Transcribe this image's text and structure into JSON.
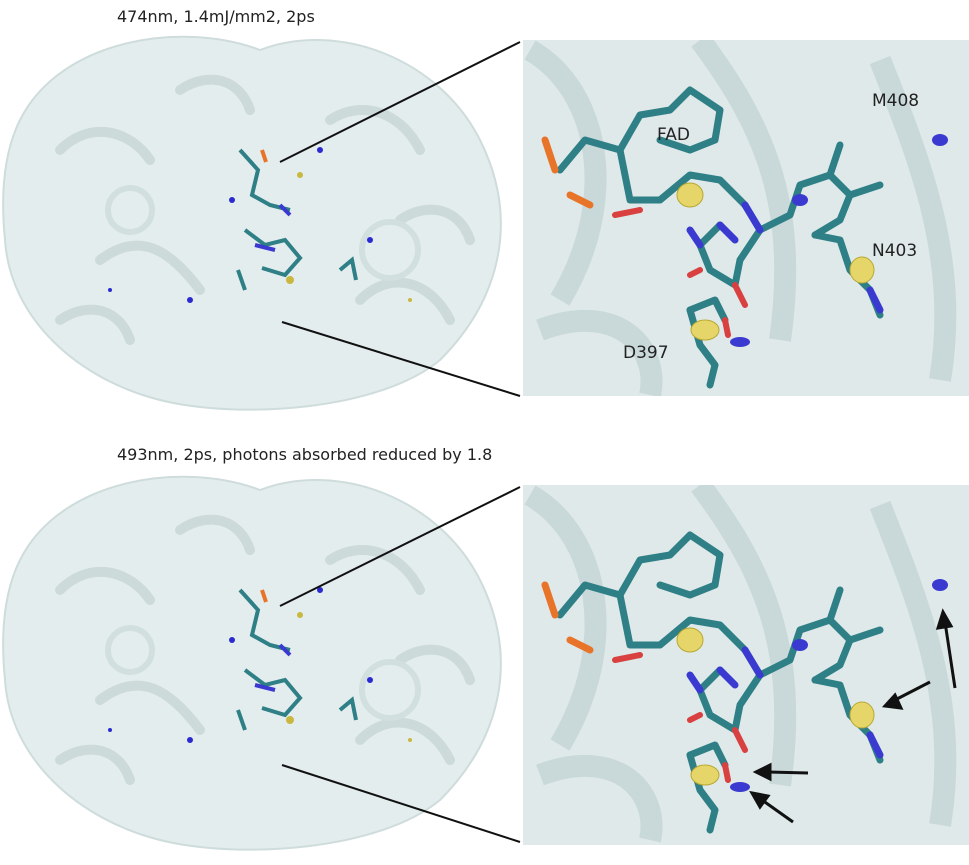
{
  "panels": [
    {
      "title": "474nm, 1.4mJ/mm2, 2ps",
      "labels": [
        "FAD",
        "M408",
        "N403",
        "D397"
      ]
    },
    {
      "title": "493nm, 2ps, photons absorbed reduced by 1.8"
    }
  ]
}
